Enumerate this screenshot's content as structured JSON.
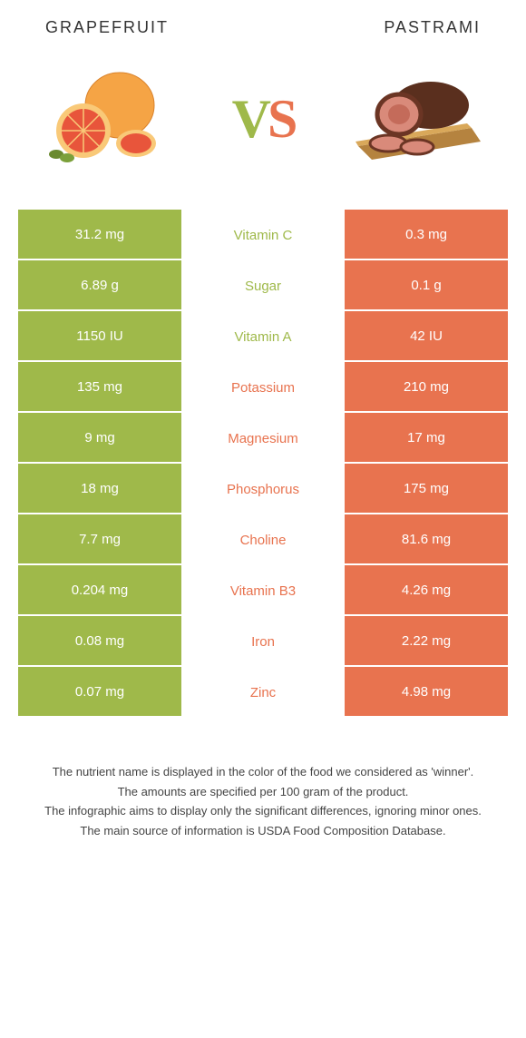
{
  "colors": {
    "left": "#9fb94a",
    "right": "#e8734f",
    "bg": "#ffffff",
    "text": "#333333"
  },
  "header": {
    "left_title": "Grapefruit",
    "right_title": "Pastrami"
  },
  "vs": {
    "v": "V",
    "s": "S"
  },
  "nutrients": [
    {
      "label": "Vitamin C",
      "left": "31.2 mg",
      "right": "0.3 mg",
      "winner": "left"
    },
    {
      "label": "Sugar",
      "left": "6.89 g",
      "right": "0.1 g",
      "winner": "left"
    },
    {
      "label": "Vitamin A",
      "left": "1150 IU",
      "right": "42 IU",
      "winner": "left"
    },
    {
      "label": "Potassium",
      "left": "135 mg",
      "right": "210 mg",
      "winner": "right"
    },
    {
      "label": "Magnesium",
      "left": "9 mg",
      "right": "17 mg",
      "winner": "right"
    },
    {
      "label": "Phosphorus",
      "left": "18 mg",
      "right": "175 mg",
      "winner": "right"
    },
    {
      "label": "Choline",
      "left": "7.7 mg",
      "right": "81.6 mg",
      "winner": "right"
    },
    {
      "label": "Vitamin B3",
      "left": "0.204 mg",
      "right": "4.26 mg",
      "winner": "right"
    },
    {
      "label": "Iron",
      "left": "0.08 mg",
      "right": "2.22 mg",
      "winner": "right"
    },
    {
      "label": "Zinc",
      "left": "0.07 mg",
      "right": "4.98 mg",
      "winner": "right"
    }
  ],
  "footnotes": [
    "The nutrient name is displayed in the color of the food we considered as 'winner'.",
    "The amounts are specified per 100 gram of the product.",
    "The infographic aims to display only the significant differences, ignoring minor ones.",
    "The main source of information is USDA Food Composition Database."
  ]
}
